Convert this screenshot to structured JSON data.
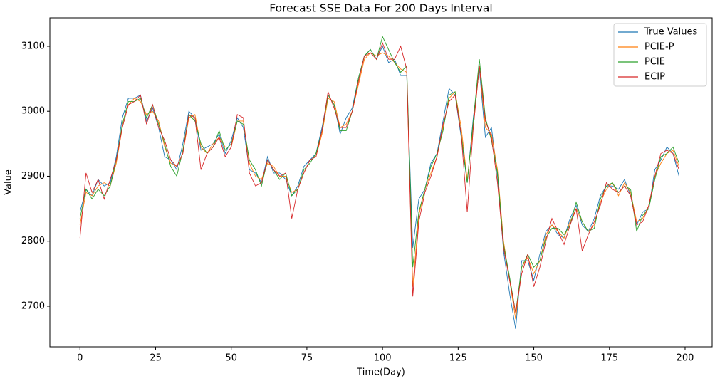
{
  "chart_data": {
    "type": "line",
    "title": "Forecast SSE Data For 200 Days Interval",
    "x_label": "Time(Day)",
    "y_label": "Value",
    "x": [
      0,
      2,
      4,
      6,
      8,
      10,
      12,
      14,
      16,
      18,
      20,
      22,
      24,
      26,
      28,
      30,
      32,
      34,
      36,
      38,
      40,
      42,
      44,
      46,
      48,
      50,
      52,
      54,
      56,
      58,
      60,
      62,
      64,
      66,
      68,
      70,
      72,
      74,
      76,
      78,
      80,
      82,
      84,
      86,
      88,
      90,
      92,
      94,
      96,
      98,
      100,
      102,
      104,
      106,
      108,
      110,
      112,
      114,
      116,
      118,
      120,
      122,
      124,
      126,
      128,
      130,
      132,
      134,
      136,
      138,
      140,
      142,
      144,
      146,
      148,
      150,
      152,
      154,
      156,
      158,
      160,
      162,
      164,
      166,
      168,
      170,
      172,
      174,
      176,
      178,
      180,
      182,
      184,
      186,
      188,
      190,
      192,
      194,
      196,
      198
    ],
    "series": [
      {
        "name": "True Values",
        "color": "#1f77b4",
        "values": [
          2845,
          2880,
          2870,
          2895,
          2885,
          2890,
          2930,
          2990,
          3020,
          3020,
          3025,
          2985,
          3005,
          2975,
          2930,
          2925,
          2910,
          2950,
          3000,
          2990,
          2940,
          2945,
          2950,
          2965,
          2935,
          2955,
          2990,
          2975,
          2910,
          2905,
          2890,
          2930,
          2905,
          2905,
          2895,
          2870,
          2885,
          2915,
          2925,
          2935,
          2975,
          3025,
          3010,
          2965,
          2990,
          3005,
          3050,
          3085,
          3095,
          3080,
          3100,
          3075,
          3080,
          3055,
          3055,
          2790,
          2865,
          2880,
          2920,
          2935,
          2985,
          3035,
          3025,
          2960,
          2890,
          2990,
          3065,
          2960,
          2975,
          2900,
          2785,
          2720,
          2665,
          2770,
          2770,
          2740,
          2780,
          2815,
          2825,
          2810,
          2805,
          2835,
          2855,
          2825,
          2815,
          2835,
          2870,
          2885,
          2885,
          2880,
          2895,
          2870,
          2825,
          2845,
          2850,
          2910,
          2925,
          2945,
          2935,
          2900
        ]
      },
      {
        "name": "PCIE-P",
        "color": "#ff7f0e",
        "values": [
          2825,
          2875,
          2870,
          2885,
          2890,
          2885,
          2920,
          2975,
          3010,
          3020,
          3015,
          2995,
          3000,
          2985,
          2945,
          2920,
          2915,
          2935,
          2990,
          2995,
          2945,
          2935,
          2950,
          2960,
          2945,
          2945,
          2985,
          2985,
          2920,
          2900,
          2895,
          2920,
          2915,
          2900,
          2900,
          2875,
          2880,
          2905,
          2925,
          2930,
          2965,
          3020,
          3015,
          2975,
          2980,
          3000,
          3040,
          3080,
          3090,
          3085,
          3090,
          3085,
          3075,
          3065,
          3060,
          2730,
          2840,
          2880,
          2905,
          2930,
          2975,
          3020,
          3030,
          2975,
          2895,
          2975,
          3070,
          2975,
          2965,
          2910,
          2800,
          2740,
          2680,
          2760,
          2775,
          2750,
          2770,
          2810,
          2825,
          2815,
          2805,
          2830,
          2850,
          2830,
          2815,
          2825,
          2860,
          2880,
          2890,
          2870,
          2890,
          2875,
          2830,
          2835,
          2855,
          2900,
          2920,
          2935,
          2940,
          2915
        ]
      },
      {
        "name": "PCIE",
        "color": "#2ca02c",
        "values": [
          2835,
          2880,
          2865,
          2880,
          2870,
          2885,
          2925,
          2980,
          3015,
          3015,
          3020,
          2990,
          3010,
          2980,
          2950,
          2915,
          2900,
          2940,
          2995,
          2985,
          2950,
          2935,
          2945,
          2970,
          2940,
          2950,
          2985,
          2980,
          2925,
          2910,
          2885,
          2925,
          2910,
          2895,
          2905,
          2870,
          2880,
          2910,
          2920,
          2935,
          2970,
          3025,
          3010,
          2970,
          2970,
          3000,
          3050,
          3085,
          3095,
          3080,
          3115,
          3095,
          3075,
          3060,
          3070,
          2760,
          2845,
          2880,
          2915,
          2935,
          2970,
          3025,
          3030,
          2965,
          2890,
          2985,
          3080,
          2990,
          2955,
          2905,
          2795,
          2745,
          2690,
          2760,
          2780,
          2760,
          2770,
          2805,
          2820,
          2820,
          2810,
          2825,
          2860,
          2830,
          2815,
          2820,
          2865,
          2885,
          2890,
          2875,
          2885,
          2880,
          2815,
          2840,
          2850,
          2895,
          2930,
          2935,
          2945,
          2920
        ]
      },
      {
        "name": "ECIP",
        "color": "#d62728",
        "values": [
          2805,
          2905,
          2875,
          2895,
          2865,
          2895,
          2925,
          2975,
          3010,
          3015,
          3025,
          2980,
          3010,
          2975,
          2955,
          2925,
          2915,
          2935,
          2995,
          2990,
          2910,
          2935,
          2945,
          2960,
          2930,
          2945,
          2995,
          2990,
          2905,
          2885,
          2890,
          2925,
          2910,
          2900,
          2905,
          2835,
          2880,
          2905,
          2925,
          2930,
          2970,
          3030,
          3005,
          2975,
          2975,
          3000,
          3045,
          3085,
          3090,
          3080,
          3105,
          3080,
          3080,
          3100,
          3065,
          2715,
          2830,
          2875,
          2900,
          2930,
          2980,
          3015,
          3025,
          2965,
          2845,
          2975,
          3070,
          2985,
          2960,
          2890,
          2790,
          2740,
          2690,
          2750,
          2780,
          2730,
          2760,
          2800,
          2835,
          2815,
          2795,
          2825,
          2850,
          2785,
          2810,
          2830,
          2855,
          2890,
          2880,
          2875,
          2885,
          2870,
          2825,
          2830,
          2855,
          2900,
          2935,
          2940,
          2935,
          2910
        ]
      }
    ],
    "xlim": [
      -9.95,
      208.95
    ],
    "ylim": [
      2637.5,
      3143.8
    ],
    "xticks": [
      0,
      25,
      50,
      75,
      100,
      125,
      150,
      175,
      200
    ],
    "yticks": [
      2700,
      2800,
      2900,
      3000,
      3100
    ],
    "legend": "upper right",
    "grid": false
  }
}
